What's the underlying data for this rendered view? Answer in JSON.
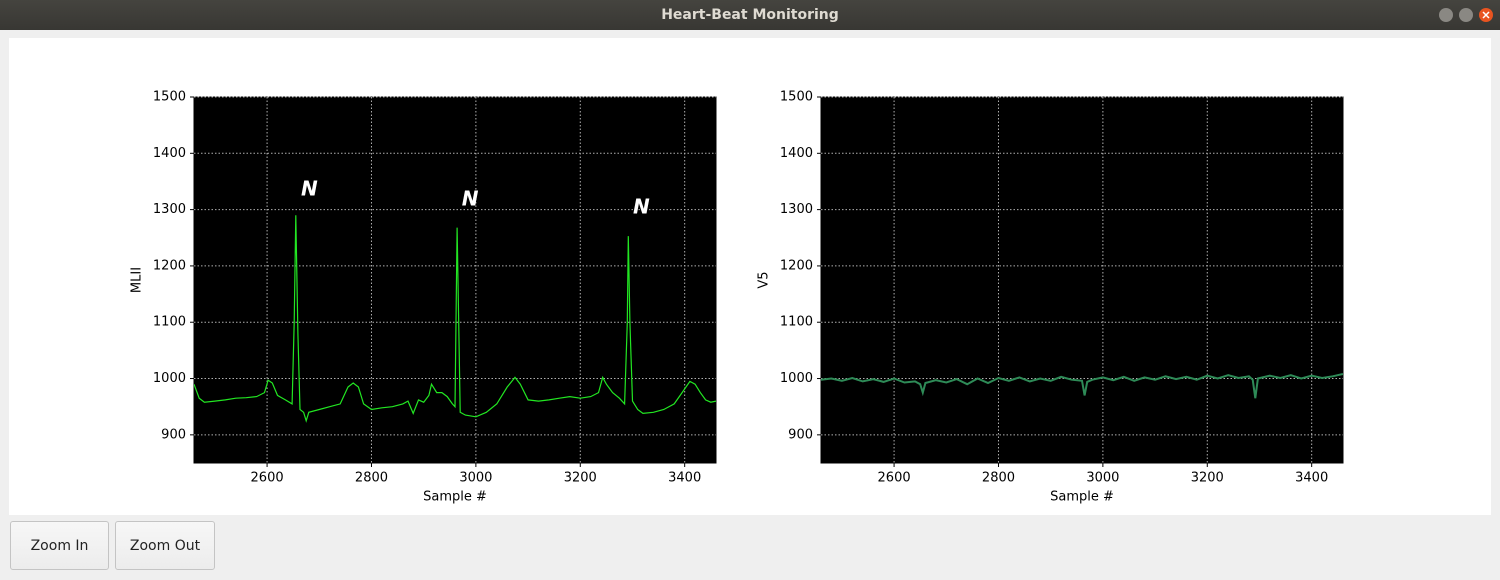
{
  "window": {
    "title": "Heart-Beat Monitoring"
  },
  "buttons": [
    "Zoom In",
    "Zoom Out"
  ],
  "chart_data": [
    {
      "type": "line",
      "ylabel": "MLII",
      "xlabel": "Sample #",
      "color": "#22e622",
      "xlim": [
        2460,
        3460
      ],
      "ylim": [
        850,
        1500
      ],
      "xticks": [
        2600,
        2800,
        3000,
        3200,
        3400
      ],
      "yticks": [
        900,
        1000,
        1100,
        1200,
        1300,
        1400,
        1500
      ],
      "grid": true,
      "x": [
        2460,
        2470,
        2480,
        2500,
        2520,
        2540,
        2560,
        2580,
        2595,
        2602,
        2610,
        2620,
        2635,
        2648,
        2652,
        2655,
        2659,
        2663,
        2670,
        2675,
        2680,
        2700,
        2720,
        2740,
        2755,
        2765,
        2775,
        2785,
        2800,
        2820,
        2840,
        2860,
        2870,
        2880,
        2890,
        2900,
        2910,
        2915,
        2925,
        2935,
        2945,
        2955,
        2960,
        2962,
        2964,
        2967,
        2970,
        2980,
        3000,
        3020,
        3040,
        3060,
        3075,
        3085,
        3100,
        3120,
        3140,
        3160,
        3180,
        3200,
        3220,
        3235,
        3243,
        3250,
        3262,
        3275,
        3285,
        3290,
        3292,
        3295,
        3300,
        3310,
        3320,
        3340,
        3360,
        3380,
        3395,
        3410,
        3420,
        3430,
        3440,
        3450,
        3460
      ],
      "values": [
        990,
        965,
        958,
        960,
        962,
        965,
        966,
        968,
        975,
        997,
        992,
        970,
        962,
        955,
        1100,
        1290,
        1080,
        945,
        940,
        925,
        940,
        945,
        950,
        955,
        985,
        992,
        985,
        955,
        945,
        948,
        950,
        955,
        960,
        938,
        962,
        958,
        970,
        990,
        975,
        975,
        968,
        955,
        950,
        1100,
        1268,
        1100,
        940,
        935,
        932,
        940,
        955,
        985,
        1002,
        990,
        962,
        960,
        962,
        965,
        968,
        965,
        968,
        975,
        1002,
        990,
        975,
        965,
        955,
        1100,
        1253,
        1100,
        960,
        945,
        938,
        940,
        945,
        955,
        975,
        995,
        990,
        975,
        962,
        958,
        960
      ],
      "annotations": [
        {
          "text": "N",
          "x": 2681,
          "y": 1335
        },
        {
          "text": "N",
          "x": 2989,
          "y": 1317
        },
        {
          "text": "N",
          "x": 3317,
          "y": 1303
        }
      ]
    },
    {
      "type": "line",
      "ylabel": "V5",
      "xlabel": "Sample #",
      "color": "#2e8b57",
      "xlim": [
        2460,
        3460
      ],
      "ylim": [
        850,
        1500
      ],
      "xticks": [
        2600,
        2800,
        3000,
        3200,
        3400
      ],
      "yticks": [
        900,
        1000,
        1100,
        1200,
        1300,
        1400,
        1500
      ],
      "grid": true,
      "x": [
        2460,
        2480,
        2500,
        2520,
        2540,
        2560,
        2580,
        2600,
        2620,
        2640,
        2650,
        2655,
        2660,
        2680,
        2700,
        2720,
        2740,
        2760,
        2780,
        2800,
        2820,
        2840,
        2860,
        2880,
        2900,
        2920,
        2940,
        2960,
        2965,
        2970,
        2980,
        3000,
        3020,
        3040,
        3060,
        3080,
        3100,
        3120,
        3140,
        3160,
        3180,
        3200,
        3220,
        3240,
        3260,
        3280,
        3287,
        3292,
        3297,
        3320,
        3340,
        3360,
        3380,
        3400,
        3420,
        3440,
        3460
      ],
      "values": [
        998,
        1000,
        996,
        1001,
        995,
        999,
        994,
        1000,
        993,
        995,
        990,
        975,
        992,
        997,
        993,
        999,
        990,
        1000,
        992,
        1001,
        996,
        1002,
        995,
        1000,
        996,
        1003,
        998,
        996,
        970,
        994,
        998,
        1002,
        997,
        1003,
        996,
        1002,
        998,
        1004,
        999,
        1003,
        998,
        1005,
        1000,
        1006,
        1001,
        1004,
        998,
        965,
        1000,
        1005,
        1001,
        1006,
        1000,
        1005,
        1001,
        1004,
        1008
      ]
    }
  ]
}
